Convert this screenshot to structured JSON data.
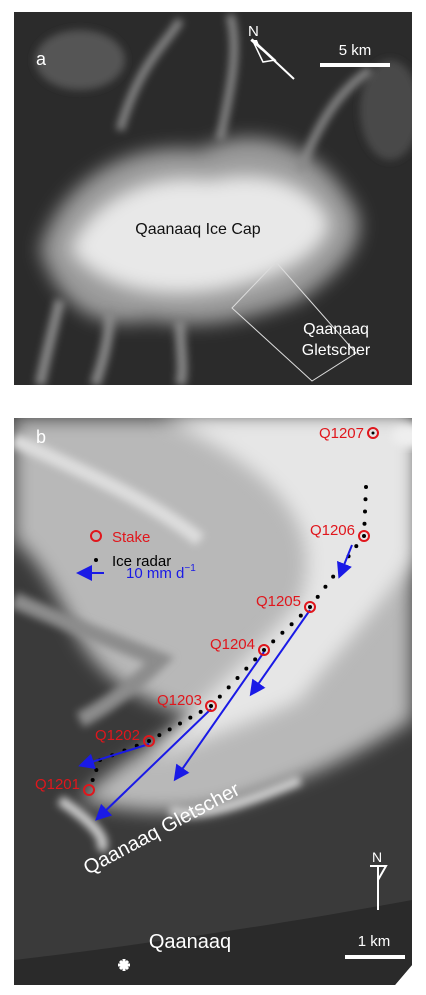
{
  "panel_a": {
    "label": "a",
    "north": "N",
    "scale": "5 km",
    "ice_cap": "Qaanaaq Ice Cap",
    "glacier": [
      "Qaanaaq",
      "Gletscher"
    ]
  },
  "panel_b": {
    "label": "b",
    "stakes": [
      "Q1207",
      "Q1206",
      "Q1205",
      "Q1204",
      "Q1203",
      "Q1202",
      "Q1201"
    ],
    "legend": {
      "stake": "Stake",
      "radar": "Ice radar",
      "velocity": "10 mm d",
      "velocity_exponent": "−1"
    },
    "glacier": "Qaanaaq Gletscher",
    "north": "N",
    "scale": "1 km",
    "town": "Qaanaaq"
  }
}
